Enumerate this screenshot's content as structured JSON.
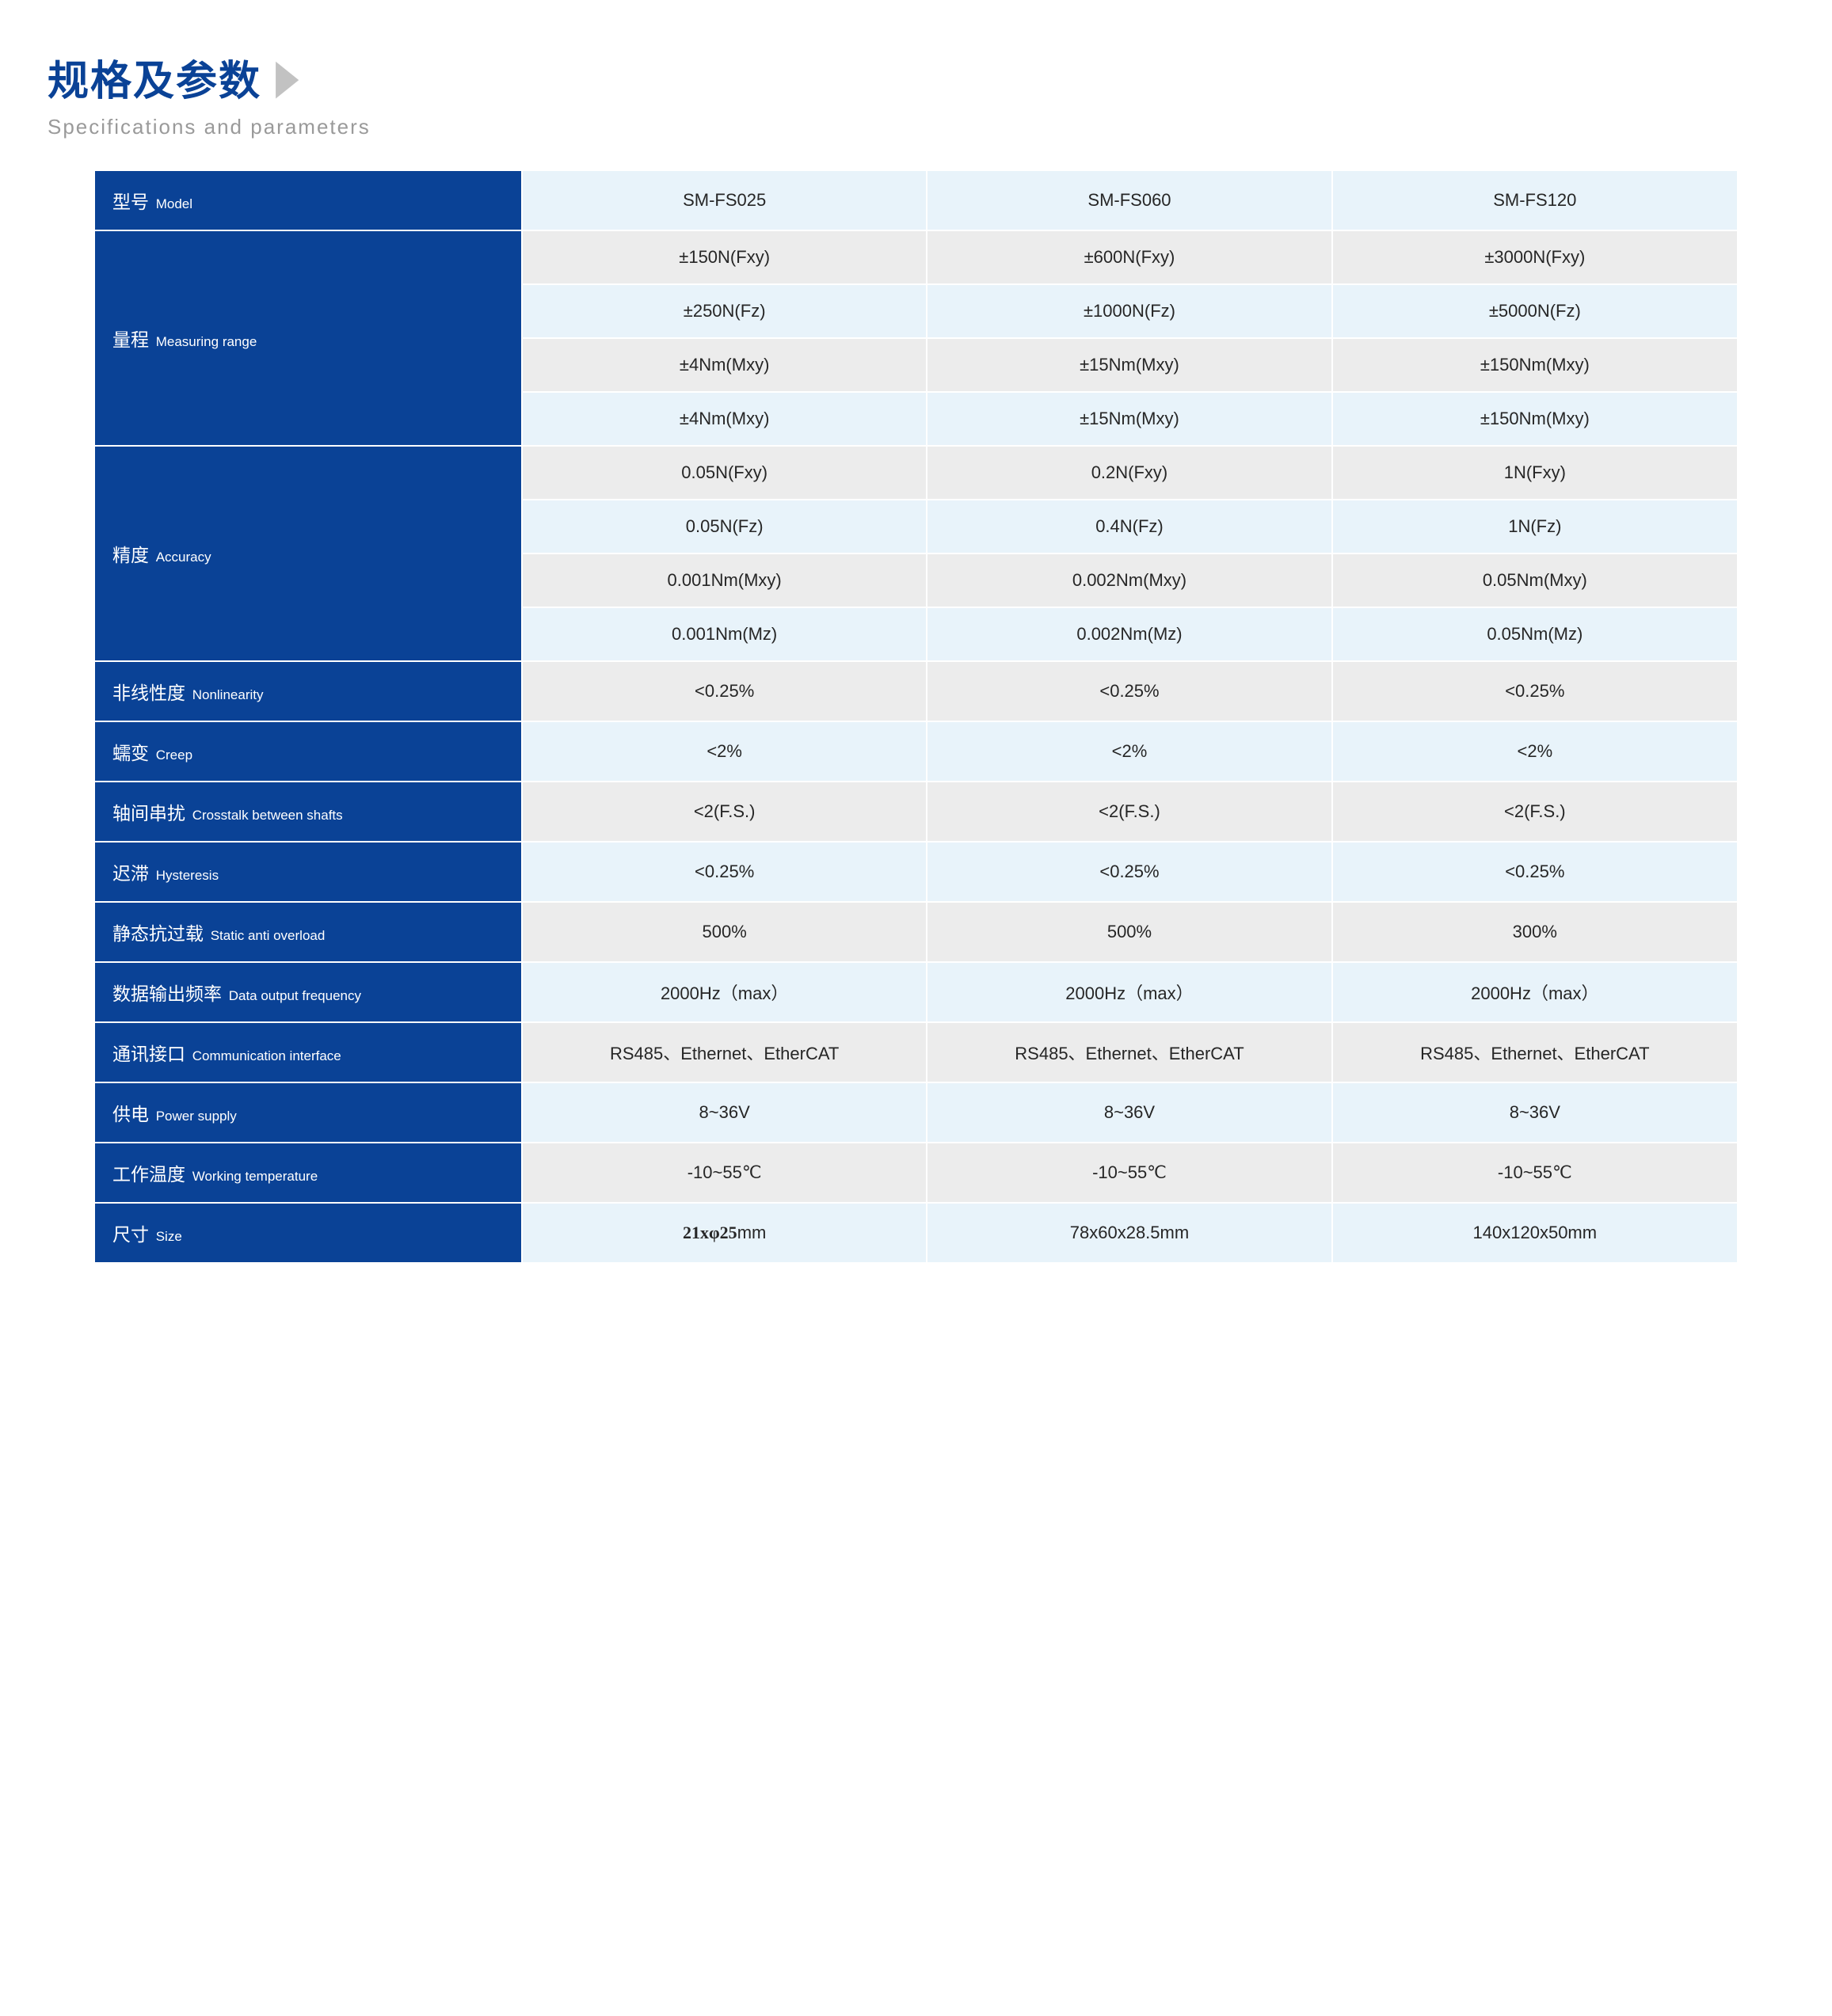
{
  "colors": {
    "accent_blue": "#0a4296",
    "heading_blue": "#0a4296",
    "subtitle_grey": "#9a9a9a",
    "chevron_grey": "#c2c2c2",
    "row_alt_a": "#ececec",
    "row_alt_b": "#e8f3fa",
    "cell_text": "#262626",
    "white": "#ffffff"
  },
  "typography": {
    "heading_cn_size_pt": 39,
    "heading_en_size_pt": 20,
    "label_cn_size_pt": 17,
    "label_en_size_pt": 13,
    "cell_size_pt": 16
  },
  "heading": {
    "cn": "规格及参数",
    "en": "Specifications and parameters"
  },
  "table": {
    "model_label": {
      "cn": "型号",
      "en": "Model"
    },
    "models": [
      "SM-FS025",
      "SM-FS060",
      "SM-FS120"
    ],
    "rows": [
      {
        "label": {
          "cn": "量程",
          "en": "Measuring range"
        },
        "sub": [
          [
            "±150N(Fxy)",
            "±600N(Fxy)",
            "±3000N(Fxy)"
          ],
          [
            "±250N(Fz)",
            "±1000N(Fz)",
            "±5000N(Fz)"
          ],
          [
            "±4Nm(Mxy)",
            "±15Nm(Mxy)",
            "±150Nm(Mxy)"
          ],
          [
            "±4Nm(Mxy)",
            "±15Nm(Mxy)",
            "±150Nm(Mxy)"
          ]
        ]
      },
      {
        "label": {
          "cn": "精度",
          "en": "Accuracy"
        },
        "sub": [
          [
            "0.05N(Fxy)",
            "0.2N(Fxy)",
            "1N(Fxy)"
          ],
          [
            "0.05N(Fz)",
            "0.4N(Fz)",
            "1N(Fz)"
          ],
          [
            "0.001Nm(Mxy)",
            "0.002Nm(Mxy)",
            "0.05Nm(Mxy)"
          ],
          [
            "0.001Nm(Mz)",
            "0.002Nm(Mz)",
            "0.05Nm(Mz)"
          ]
        ]
      },
      {
        "label": {
          "cn": "非线性度",
          "en": "Nonlinearity"
        },
        "sub": [
          [
            "<0.25%",
            "<0.25%",
            "<0.25%"
          ]
        ]
      },
      {
        "label": {
          "cn": "蠕变",
          "en": "Creep"
        },
        "sub": [
          [
            "<2%",
            "<2%",
            "<2%"
          ]
        ]
      },
      {
        "label": {
          "cn": "轴间串扰",
          "en": "Crosstalk between shafts"
        },
        "sub": [
          [
            "<2(F.S.)",
            "<2(F.S.)",
            "<2(F.S.)"
          ]
        ]
      },
      {
        "label": {
          "cn": "迟滞",
          "en": "Hysteresis"
        },
        "sub": [
          [
            "<0.25%",
            "<0.25%",
            "<0.25%"
          ]
        ]
      },
      {
        "label": {
          "cn": "静态抗过载",
          "en": "Static anti overload"
        },
        "sub": [
          [
            "500%",
            "500%",
            "300%"
          ]
        ]
      },
      {
        "label": {
          "cn": "数据输出频率",
          "en": "Data output frequency"
        },
        "sub": [
          [
            "2000Hz（max）",
            "2000Hz（max）",
            "2000Hz（max）"
          ]
        ]
      },
      {
        "label": {
          "cn": "通讯接口",
          "en": "Communication interface"
        },
        "sub": [
          [
            "RS485、Ethernet、EtherCAT",
            "RS485、Ethernet、EtherCAT",
            "RS485、Ethernet、EtherCAT"
          ]
        ]
      },
      {
        "label": {
          "cn": "供电",
          "en": "Power supply"
        },
        "sub": [
          [
            "8~36V",
            "8~36V",
            "8~36V"
          ]
        ]
      },
      {
        "label": {
          "cn": "工作温度",
          "en": "Working temperature"
        },
        "sub": [
          [
            "-10~55℃",
            "-10~55℃",
            "-10~55℃"
          ]
        ]
      },
      {
        "label": {
          "cn": "尺寸",
          "en": "Size"
        },
        "sub": [
          [
            "21xφ25mm",
            "78x60x28.5mm",
            "140x120x50mm"
          ]
        ],
        "first_cell_special": true
      }
    ]
  }
}
